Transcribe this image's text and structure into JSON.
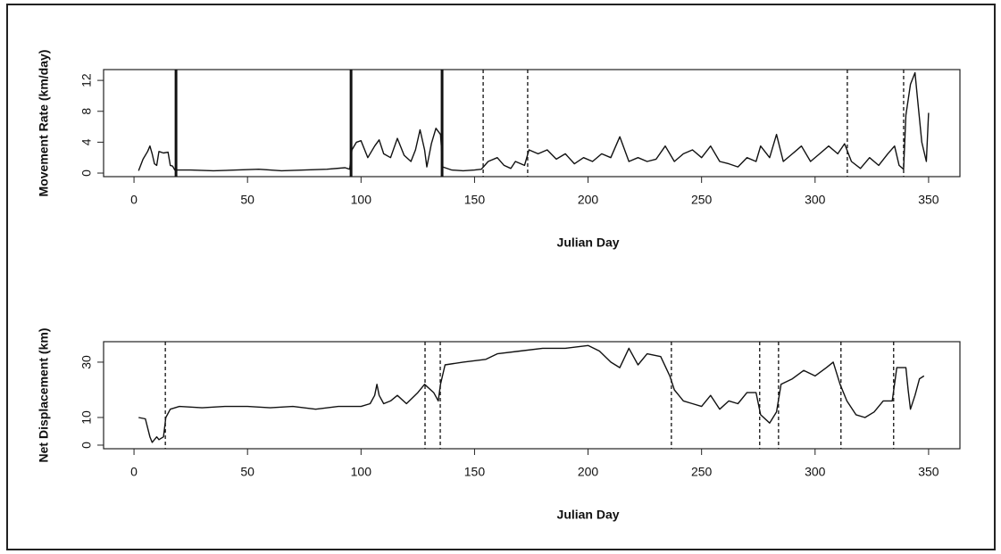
{
  "chart_data": [
    {
      "type": "line",
      "xlabel": "Julian Day",
      "ylabel": "Movement Rate (km/day)",
      "xlim": [
        -13.4,
        363.8
      ],
      "ylim": [
        -0.46,
        13.4
      ],
      "xticks": [
        0,
        50,
        100,
        150,
        200,
        250,
        300,
        350
      ],
      "yticks": [
        0,
        4,
        8,
        12
      ],
      "vlines_solid": [
        18.5,
        95.6,
        135.7
      ],
      "vlines_dashed": [
        153.8,
        173.4,
        314.2,
        339
      ],
      "series": [
        {
          "color": "#111111",
          "x": [
            2,
            4,
            6,
            7,
            8,
            9,
            10,
            11,
            13,
            15,
            16,
            17,
            18,
            25,
            35,
            45,
            55,
            65,
            75,
            85,
            93,
            95,
            96,
            98,
            100,
            103,
            106,
            108,
            110,
            113,
            116,
            119,
            122,
            124,
            126,
            128,
            129,
            131,
            133,
            135,
            136,
            140,
            145,
            150,
            153,
            156,
            160,
            163,
            166,
            168,
            172,
            174,
            178,
            182,
            186,
            190,
            194,
            198,
            202,
            206,
            210,
            214,
            218,
            222,
            226,
            230,
            234,
            238,
            242,
            246,
            250,
            254,
            258,
            262,
            266,
            270,
            274,
            276,
            280,
            283,
            286,
            290,
            294,
            298,
            302,
            306,
            310,
            313,
            316,
            320,
            324,
            328,
            332,
            335,
            337,
            339,
            340,
            342,
            344,
            345,
            347,
            349,
            350
          ],
          "values": [
            0.3,
            1.8,
            2.8,
            3.5,
            2.5,
            1.2,
            1.0,
            2.8,
            2.6,
            2.7,
            1.0,
            0.9,
            0.4,
            0.4,
            0.3,
            0.4,
            0.5,
            0.3,
            0.4,
            0.5,
            0.7,
            0.5,
            3.0,
            4.0,
            4.2,
            2.0,
            3.5,
            4.3,
            2.5,
            2.0,
            4.5,
            2.3,
            1.5,
            3.0,
            5.6,
            3.0,
            0.8,
            3.8,
            5.8,
            5.0,
            0.8,
            0.4,
            0.3,
            0.4,
            0.5,
            1.5,
            2.0,
            1.0,
            0.6,
            1.5,
            1.0,
            3.0,
            2.5,
            3.0,
            1.8,
            2.5,
            1.2,
            2.0,
            1.5,
            2.5,
            2.0,
            4.7,
            1.5,
            2.0,
            1.5,
            1.8,
            3.5,
            1.5,
            2.5,
            3.0,
            2.0,
            3.5,
            1.5,
            1.2,
            0.8,
            2.0,
            1.5,
            3.5,
            2.0,
            5.0,
            1.5,
            2.5,
            3.5,
            1.5,
            2.5,
            3.5,
            2.5,
            3.8,
            1.5,
            0.6,
            2.0,
            1.0,
            2.5,
            3.5,
            1.0,
            0.5,
            7.5,
            11.5,
            13.0,
            10,
            4.0,
            1.5,
            7.8
          ]
        }
      ]
    },
    {
      "type": "line",
      "xlabel": "Julian Day",
      "ylabel": "Net Displacement (km)",
      "xlim": [
        -13.4,
        363.8
      ],
      "ylim": [
        -1.3,
        37.4
      ],
      "xticks": [
        0,
        50,
        100,
        150,
        200,
        250,
        300,
        350
      ],
      "yticks": [
        0,
        10,
        30
      ],
      "vlines_solid": [],
      "vlines_dashed": [
        13.8,
        128.2,
        134.9,
        236.7,
        275.6,
        283.9,
        311.4,
        334.6
      ],
      "series": [
        {
          "color": "#111111",
          "x": [
            2,
            5,
            7,
            8,
            10,
            11,
            13,
            14,
            16,
            20,
            30,
            40,
            50,
            60,
            70,
            80,
            90,
            100,
            104,
            106,
            107,
            108,
            110,
            113,
            116,
            120,
            125,
            128,
            132,
            134,
            135,
            137,
            145,
            155,
            160,
            170,
            180,
            190,
            200,
            205,
            210,
            214,
            218,
            222,
            226,
            232,
            236,
            238,
            242,
            246,
            250,
            254,
            258,
            262,
            266,
            270,
            274,
            276,
            280,
            283,
            285,
            290,
            295,
            300,
            305,
            308,
            311,
            314,
            318,
            322,
            326,
            330,
            334,
            336,
            340,
            341,
            342,
            344,
            346,
            348
          ],
          "values": [
            10,
            9.5,
            3,
            1,
            3,
            2,
            3,
            10,
            13,
            14,
            13.5,
            14,
            14,
            13.5,
            14,
            13,
            14,
            14,
            15,
            18,
            22,
            18,
            15,
            16,
            18,
            15,
            19,
            22,
            19,
            16,
            22,
            29,
            30,
            31,
            33,
            34,
            35,
            35,
            36,
            34,
            30,
            28,
            35,
            29,
            33,
            32,
            25,
            20,
            16,
            15,
            14,
            18,
            13,
            16,
            15,
            19,
            19,
            11,
            8,
            12,
            22,
            24,
            27,
            25,
            28,
            30,
            22,
            16,
            11,
            10,
            12,
            16,
            16,
            28,
            28,
            20,
            13,
            18,
            24,
            25
          ]
        }
      ]
    }
  ]
}
